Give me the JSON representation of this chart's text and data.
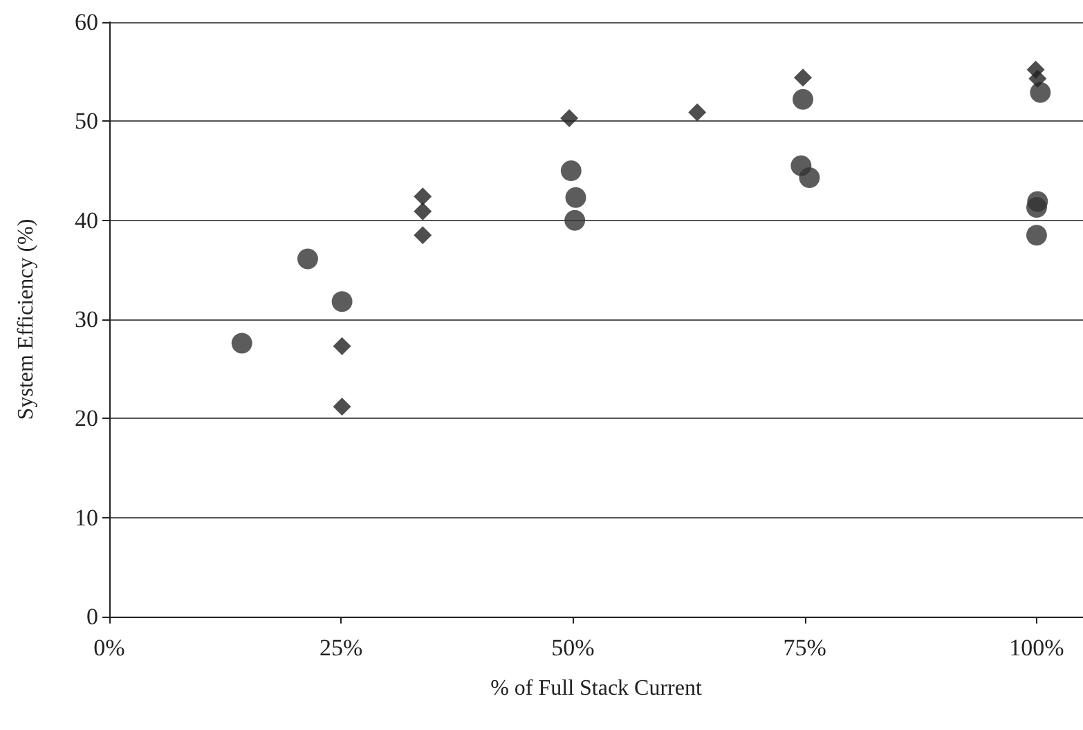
{
  "chart_data": {
    "type": "scatter",
    "xlabel": "% of Full Stack Current",
    "ylabel": "System Efficiency (%)",
    "xlim": [
      0,
      105
    ],
    "xticks": [
      {
        "value": 0,
        "label": "0%"
      },
      {
        "value": 25,
        "label": "25%"
      },
      {
        "value": 50,
        "label": "50%"
      },
      {
        "value": 75,
        "label": "75%"
      },
      {
        "value": 100,
        "label": "100%"
      }
    ],
    "ylim": [
      0,
      60
    ],
    "yticks": [
      0,
      10,
      20,
      30,
      40,
      50,
      60
    ],
    "grid": "y",
    "series": [
      {
        "color": "#333333",
        "marker": "circle",
        "x": [
          14.3,
          21.4,
          25.1,
          49.8,
          50.3,
          50.2,
          74.6,
          75.5,
          74.8,
          100.4,
          100.1,
          100.0,
          100.0
        ],
        "values": [
          27.6,
          36.1,
          31.8,
          45.0,
          42.3,
          40.0,
          45.5,
          44.3,
          52.2,
          52.9,
          41.9,
          41.3,
          38.5
        ]
      },
      {
        "color": "#222222",
        "marker": "diamond",
        "x": [
          25.1,
          25.1,
          33.8,
          33.8,
          33.8,
          49.6,
          63.4,
          74.8,
          99.9,
          100.1
        ],
        "values": [
          27.3,
          21.2,
          42.4,
          40.9,
          38.5,
          50.3,
          50.9,
          54.4,
          55.2,
          54.3
        ]
      }
    ]
  }
}
